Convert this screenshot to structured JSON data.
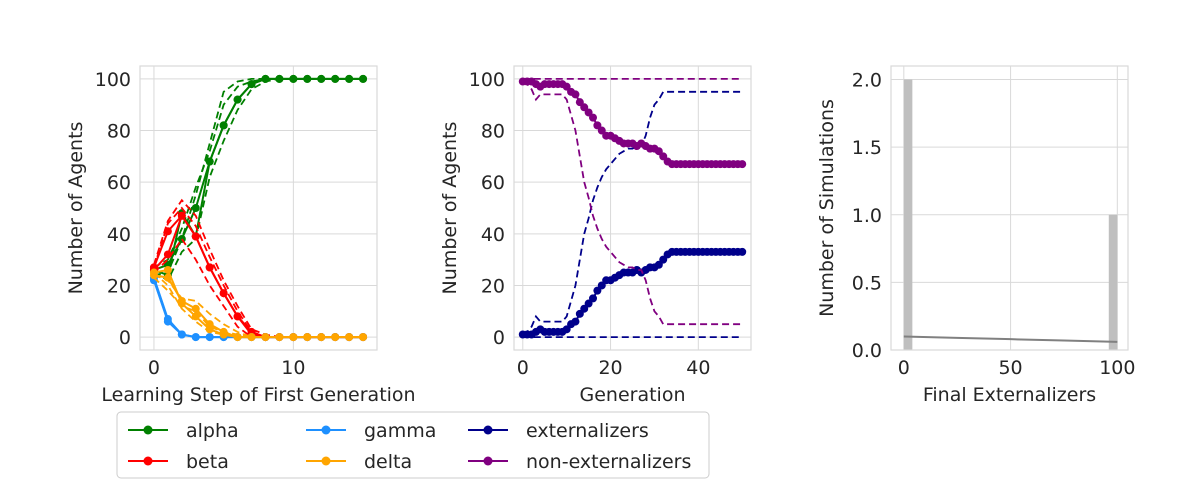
{
  "colors": {
    "alpha": "#008000",
    "beta": "#ff0000",
    "gamma": "#1e90ff",
    "delta": "#ffa500",
    "externalizers": "#00008b",
    "non_externalizers": "#800080",
    "hist_bar": "#bfbfbf",
    "kde_line": "#808080",
    "grid": "#d9d9d9"
  },
  "legend": {
    "placement": "below-left",
    "entries": [
      {
        "key": "alpha",
        "label": "alpha"
      },
      {
        "key": "beta",
        "label": "beta"
      },
      {
        "key": "gamma",
        "label": "gamma"
      },
      {
        "key": "delta",
        "label": "delta"
      },
      {
        "key": "externalizers",
        "label": "externalizers"
      },
      {
        "key": "non_externalizers",
        "label": "non-externalizers"
      }
    ]
  },
  "chart_data": [
    {
      "type": "line",
      "xlabel": "Learning Step of First Generation",
      "ylabel": "Number of Agents",
      "xlim": [
        -1,
        16
      ],
      "ylim": [
        -5,
        105
      ],
      "xticks": [
        0,
        10
      ],
      "yticks": [
        0,
        20,
        40,
        60,
        80,
        100
      ],
      "grid": true,
      "x": [
        0,
        1,
        2,
        3,
        4,
        5,
        6,
        7,
        8,
        9,
        10,
        11,
        12,
        13,
        14,
        15
      ],
      "series": [
        {
          "name": "alpha",
          "color_key": "alpha",
          "marker": true,
          "lines": [
            [
              26,
              28,
              38,
              50,
              68,
              82,
              92,
              98,
              100,
              100,
              100,
              100,
              100,
              100,
              100,
              100
            ],
            [
              26,
              24,
              48,
              39,
              68,
              82,
              92,
              98,
              100,
              100,
              100,
              100,
              100,
              100,
              100,
              100
            ]
          ],
          "bands": [
            [
              24,
              25,
              38,
              55,
              75,
              95,
              99,
              100,
              100,
              100,
              100,
              100,
              100,
              100,
              100,
              100
            ],
            [
              25,
              22,
              33,
              38,
              62,
              76,
              88,
              96,
              99,
              100,
              100,
              100,
              100,
              100,
              100,
              100
            ],
            [
              27,
              30,
              42,
              58,
              72,
              90,
              97,
              99,
              100,
              100,
              100,
              100,
              100,
              100,
              100,
              100
            ]
          ]
        },
        {
          "name": "beta",
          "color_key": "beta",
          "marker": true,
          "lines": [
            [
              27,
              41,
              47,
              39,
              27,
              17,
              8,
              2,
              0,
              0,
              0,
              0,
              0,
              0,
              0,
              0
            ],
            [
              26,
              32,
              47,
              39,
              27,
              17,
              8,
              1,
              0,
              0,
              0,
              0,
              0,
              0,
              0,
              0
            ]
          ],
          "bands": [
            [
              28,
              45,
              53,
              47,
              34,
              22,
              12,
              3,
              1,
              0,
              0,
              0,
              0,
              0,
              0,
              0
            ],
            [
              25,
              30,
              38,
              30,
              20,
              12,
              4,
              0,
              0,
              0,
              0,
              0,
              0,
              0,
              0,
              0
            ],
            [
              27,
              44,
              50,
              43,
              31,
              20,
              10,
              2,
              0,
              0,
              0,
              0,
              0,
              0,
              0,
              0
            ]
          ]
        },
        {
          "name": "gamma",
          "color_key": "gamma",
          "marker": true,
          "lines": [
            [
              23,
              7,
              1,
              0,
              0,
              0,
              0,
              0,
              0,
              0,
              0,
              0,
              0,
              0,
              0,
              0
            ],
            [
              22,
              6,
              1,
              0,
              0,
              0,
              0,
              0,
              0,
              0,
              0,
              0,
              0,
              0,
              0,
              0
            ]
          ],
          "bands": []
        },
        {
          "name": "delta",
          "color_key": "delta",
          "marker": true,
          "lines": [
            [
              25,
              26,
              13,
              8,
              3,
              1,
              0,
              0,
              0,
              0,
              0,
              0,
              0,
              0,
              0,
              0
            ],
            [
              24,
              23,
              14,
              11,
              5,
              2,
              0,
              0,
              0,
              0,
              0,
              0,
              0,
              0,
              0,
              0
            ]
          ],
          "bands": [
            [
              24,
              22,
              15,
              14,
              9,
              5,
              2,
              0,
              0,
              0,
              0,
              0,
              0,
              0,
              0,
              0
            ],
            [
              25,
              20,
              11,
              6,
              2,
              1,
              0,
              0,
              0,
              0,
              0,
              0,
              0,
              0,
              0,
              0
            ],
            [
              23,
              18,
              12,
              10,
              4,
              2,
              1,
              0,
              0,
              0,
              0,
              0,
              0,
              0,
              0,
              0
            ]
          ]
        }
      ]
    },
    {
      "type": "line",
      "xlabel": "Generation",
      "ylabel": "Number of Agents",
      "xlim": [
        -2,
        52
      ],
      "ylim": [
        -5,
        105
      ],
      "xticks": [
        0,
        20,
        40
      ],
      "yticks": [
        0,
        20,
        40,
        60,
        80,
        100
      ],
      "grid": true,
      "x": [
        0,
        1,
        2,
        3,
        4,
        5,
        6,
        7,
        8,
        9,
        10,
        11,
        12,
        13,
        14,
        15,
        16,
        17,
        18,
        19,
        20,
        21,
        22,
        23,
        24,
        25,
        26,
        27,
        28,
        29,
        30,
        31,
        32,
        33,
        34,
        35,
        36,
        37,
        38,
        39,
        40,
        41,
        42,
        43,
        44,
        45,
        46,
        47,
        48,
        49,
        50
      ],
      "series": [
        {
          "name": "externalizers",
          "color_key": "externalizers",
          "marker": true,
          "values": [
            1,
            1,
            1,
            2,
            3,
            2,
            2,
            2,
            2,
            2,
            3,
            5,
            6,
            9,
            11,
            13,
            15,
            18,
            20,
            22,
            22,
            23,
            24,
            25,
            25,
            25,
            26,
            25,
            26,
            27,
            27,
            28,
            30,
            32,
            33,
            33,
            33,
            33,
            33,
            33,
            33,
            33,
            33,
            33,
            33,
            33,
            33,
            33,
            33,
            33,
            33
          ],
          "bands": [
            [
              1,
              2,
              4,
              8,
              6,
              6,
              6,
              6,
              6,
              6,
              8,
              14,
              20,
              30,
              40,
              46,
              53,
              58,
              62,
              65,
              67,
              69,
              71,
              72,
              73,
              73,
              74,
              74,
              78,
              85,
              90,
              92,
              95,
              95,
              95,
              95,
              95,
              95,
              95,
              95,
              95,
              95,
              95,
              95,
              95,
              95,
              95,
              95,
              95,
              95,
              95
            ],
            [
              0,
              0,
              0,
              0,
              0,
              0,
              0,
              0,
              0,
              0,
              0,
              0,
              0,
              0,
              0,
              0,
              0,
              0,
              0,
              0,
              0,
              0,
              0,
              0,
              0,
              0,
              0,
              0,
              0,
              0,
              0,
              0,
              0,
              0,
              0,
              0,
              0,
              0,
              0,
              0,
              0,
              0,
              0,
              0,
              0,
              0,
              0,
              0,
              0,
              0,
              0
            ]
          ]
        },
        {
          "name": "non-externalizers",
          "color_key": "non_externalizers",
          "marker": true,
          "values": [
            99,
            99,
            99,
            98,
            97,
            98,
            98,
            98,
            98,
            98,
            97,
            95,
            94,
            91,
            89,
            87,
            85,
            82,
            80,
            78,
            78,
            77,
            76,
            75,
            75,
            75,
            74,
            75,
            74,
            73,
            73,
            72,
            70,
            68,
            67,
            67,
            67,
            67,
            67,
            67,
            67,
            67,
            67,
            67,
            67,
            67,
            67,
            67,
            67,
            67,
            67
          ],
          "bands": [
            [
              100,
              100,
              100,
              100,
              100,
              100,
              100,
              100,
              100,
              100,
              100,
              100,
              100,
              100,
              100,
              100,
              100,
              100,
              100,
              100,
              100,
              100,
              100,
              100,
              100,
              100,
              100,
              100,
              100,
              100,
              100,
              100,
              100,
              100,
              100,
              100,
              100,
              100,
              100,
              100,
              100,
              100,
              100,
              100,
              100,
              100,
              100,
              100,
              100,
              100,
              100
            ],
            [
              99,
              98,
              96,
              92,
              94,
              94,
              94,
              94,
              94,
              94,
              92,
              86,
              80,
              70,
              60,
              54,
              47,
              42,
              38,
              35,
              33,
              31,
              29,
              28,
              27,
              27,
              26,
              26,
              22,
              15,
              10,
              8,
              5,
              5,
              5,
              5,
              5,
              5,
              5,
              5,
              5,
              5,
              5,
              5,
              5,
              5,
              5,
              5,
              5,
              5,
              5
            ]
          ]
        }
      ]
    },
    {
      "type": "bar",
      "xlabel": "Final Externalizers",
      "ylabel": "Number of Simulations",
      "xlim": [
        -6,
        105
      ],
      "ylim": [
        0,
        2.1
      ],
      "xticks": [
        0,
        50,
        100
      ],
      "yticks": [
        0.0,
        0.5,
        1.0,
        1.5,
        2.0
      ],
      "ytick_labels": [
        "0.0",
        "0.5",
        "1.0",
        "1.5",
        "2.0"
      ],
      "grid": true,
      "bars": [
        {
          "x_start": 0,
          "x_end": 4,
          "value": 2
        },
        {
          "x_start": 96,
          "x_end": 100,
          "value": 1
        }
      ],
      "kde_line": {
        "x": [
          0,
          25,
          50,
          75,
          100
        ],
        "y": [
          0.1,
          0.09,
          0.08,
          0.07,
          0.06
        ]
      }
    }
  ]
}
